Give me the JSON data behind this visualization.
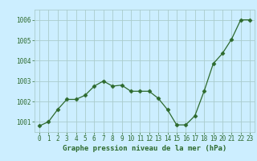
{
  "x": [
    0,
    1,
    2,
    3,
    4,
    5,
    6,
    7,
    8,
    9,
    10,
    11,
    12,
    13,
    14,
    15,
    16,
    17,
    18,
    19,
    20,
    21,
    22,
    23
  ],
  "y": [
    1000.8,
    1001.0,
    1001.6,
    1002.1,
    1002.1,
    1002.3,
    1002.75,
    1003.0,
    1002.75,
    1002.8,
    1002.5,
    1002.5,
    1002.5,
    1002.15,
    1001.6,
    1000.85,
    1000.85,
    1001.3,
    1002.5,
    1003.85,
    1004.35,
    1005.05,
    1006.0,
    1006.0
  ],
  "ylim": [
    1000.5,
    1006.5
  ],
  "yticks": [
    1001,
    1002,
    1003,
    1004,
    1005,
    1006
  ],
  "xlim": [
    -0.5,
    23.5
  ],
  "xticks": [
    0,
    1,
    2,
    3,
    4,
    5,
    6,
    7,
    8,
    9,
    10,
    11,
    12,
    13,
    14,
    15,
    16,
    17,
    18,
    19,
    20,
    21,
    22,
    23
  ],
  "xlabel": "Graphe pression niveau de la mer (hPa)",
  "line_color": "#2d6a2d",
  "marker": "D",
  "marker_size": 2.5,
  "bg_color": "#cceeff",
  "grid_color": "#aacccc",
  "tick_color": "#2d6a2d",
  "label_fontsize": 5.5,
  "xlabel_fontsize": 6.5
}
